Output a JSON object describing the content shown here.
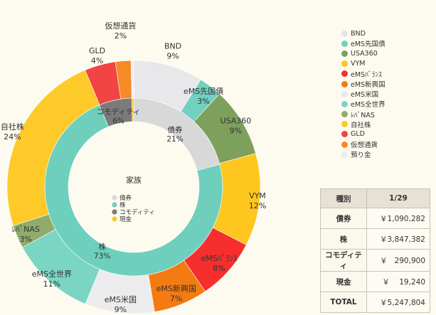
{
  "chart_data": {
    "type": "pie",
    "variant": "nested-donut",
    "center_label": "家族",
    "outer": {
      "labels": [
        "BND",
        "eMS先国債",
        "USA360",
        "VYM",
        "eMSﾊﾞﾗﾝｽ",
        "eMS新興国",
        "eMS米国",
        "eMS全世界",
        "ﾚﾊﾞNAS",
        "自社株",
        "GLD",
        "仮想通貨",
        "預り金"
      ],
      "values": [
        9,
        3,
        9,
        12,
        8,
        7,
        9,
        11,
        3,
        24,
        4,
        2,
        0
      ],
      "percent_labels": [
        "9%",
        "3%",
        "9%",
        "12%",
        "8%",
        "7%",
        "9%",
        "11%",
        "3%",
        "24%",
        "4%",
        "2%",
        ""
      ],
      "colors": [
        "#e8e8ea",
        "#72d0be",
        "#7da05d",
        "#fec61e",
        "#f62e2d",
        "#f47a12",
        "#ececee",
        "#7ad6c3",
        "#90ac6c",
        "#fdca29",
        "#f24443",
        "#f58a26",
        "#f0f0f2"
      ]
    },
    "inner": {
      "labels": [
        "債券",
        "株",
        "コモディティ",
        "現金"
      ],
      "values": [
        21,
        73,
        6,
        0
      ],
      "percent_labels": [
        "21%",
        "73%",
        "6%",
        ""
      ],
      "colors": [
        "#d8d8d8",
        "#6ecfbd",
        "#7b7b7b",
        "#fec61e"
      ]
    },
    "inner_legend": [
      "債券",
      "株",
      "コモディティ",
      "現金"
    ],
    "legend_position": "right"
  },
  "legend": [
    {
      "label": "BND",
      "color": "#e4e4e4"
    },
    {
      "label": "eMS先国債",
      "color": "#72d0be"
    },
    {
      "label": "USA360",
      "color": "#7da05d"
    },
    {
      "label": "VYM",
      "color": "#fec61e"
    },
    {
      "label": "eMSﾊﾞﾗﾝｽ",
      "color": "#f62e2d"
    },
    {
      "label": "eMS新興国",
      "color": "#f47a12"
    },
    {
      "label": "eMS米国",
      "color": "#e8e8e8"
    },
    {
      "label": "eMS全世界",
      "color": "#7ad6c3"
    },
    {
      "label": "ﾚﾊﾞNAS",
      "color": "#90ac6c"
    },
    {
      "label": "自社株",
      "color": "#fdca29"
    },
    {
      "label": "GLD",
      "color": "#f24443"
    },
    {
      "label": "仮想通貨",
      "color": "#f58a26"
    },
    {
      "label": "預り金",
      "color": "#ececec"
    }
  ],
  "summary_table": {
    "header": [
      "種別",
      "1/29"
    ],
    "rows": [
      {
        "label": "債券",
        "value": "￥1,090,282"
      },
      {
        "label": "株",
        "value": "￥3,847,382"
      },
      {
        "label": "コモディティ",
        "value": "￥   290,900"
      },
      {
        "label": "現金",
        "value": "￥    19,240"
      },
      {
        "label": "TOTAL",
        "value": "￥5,247,804"
      }
    ]
  }
}
